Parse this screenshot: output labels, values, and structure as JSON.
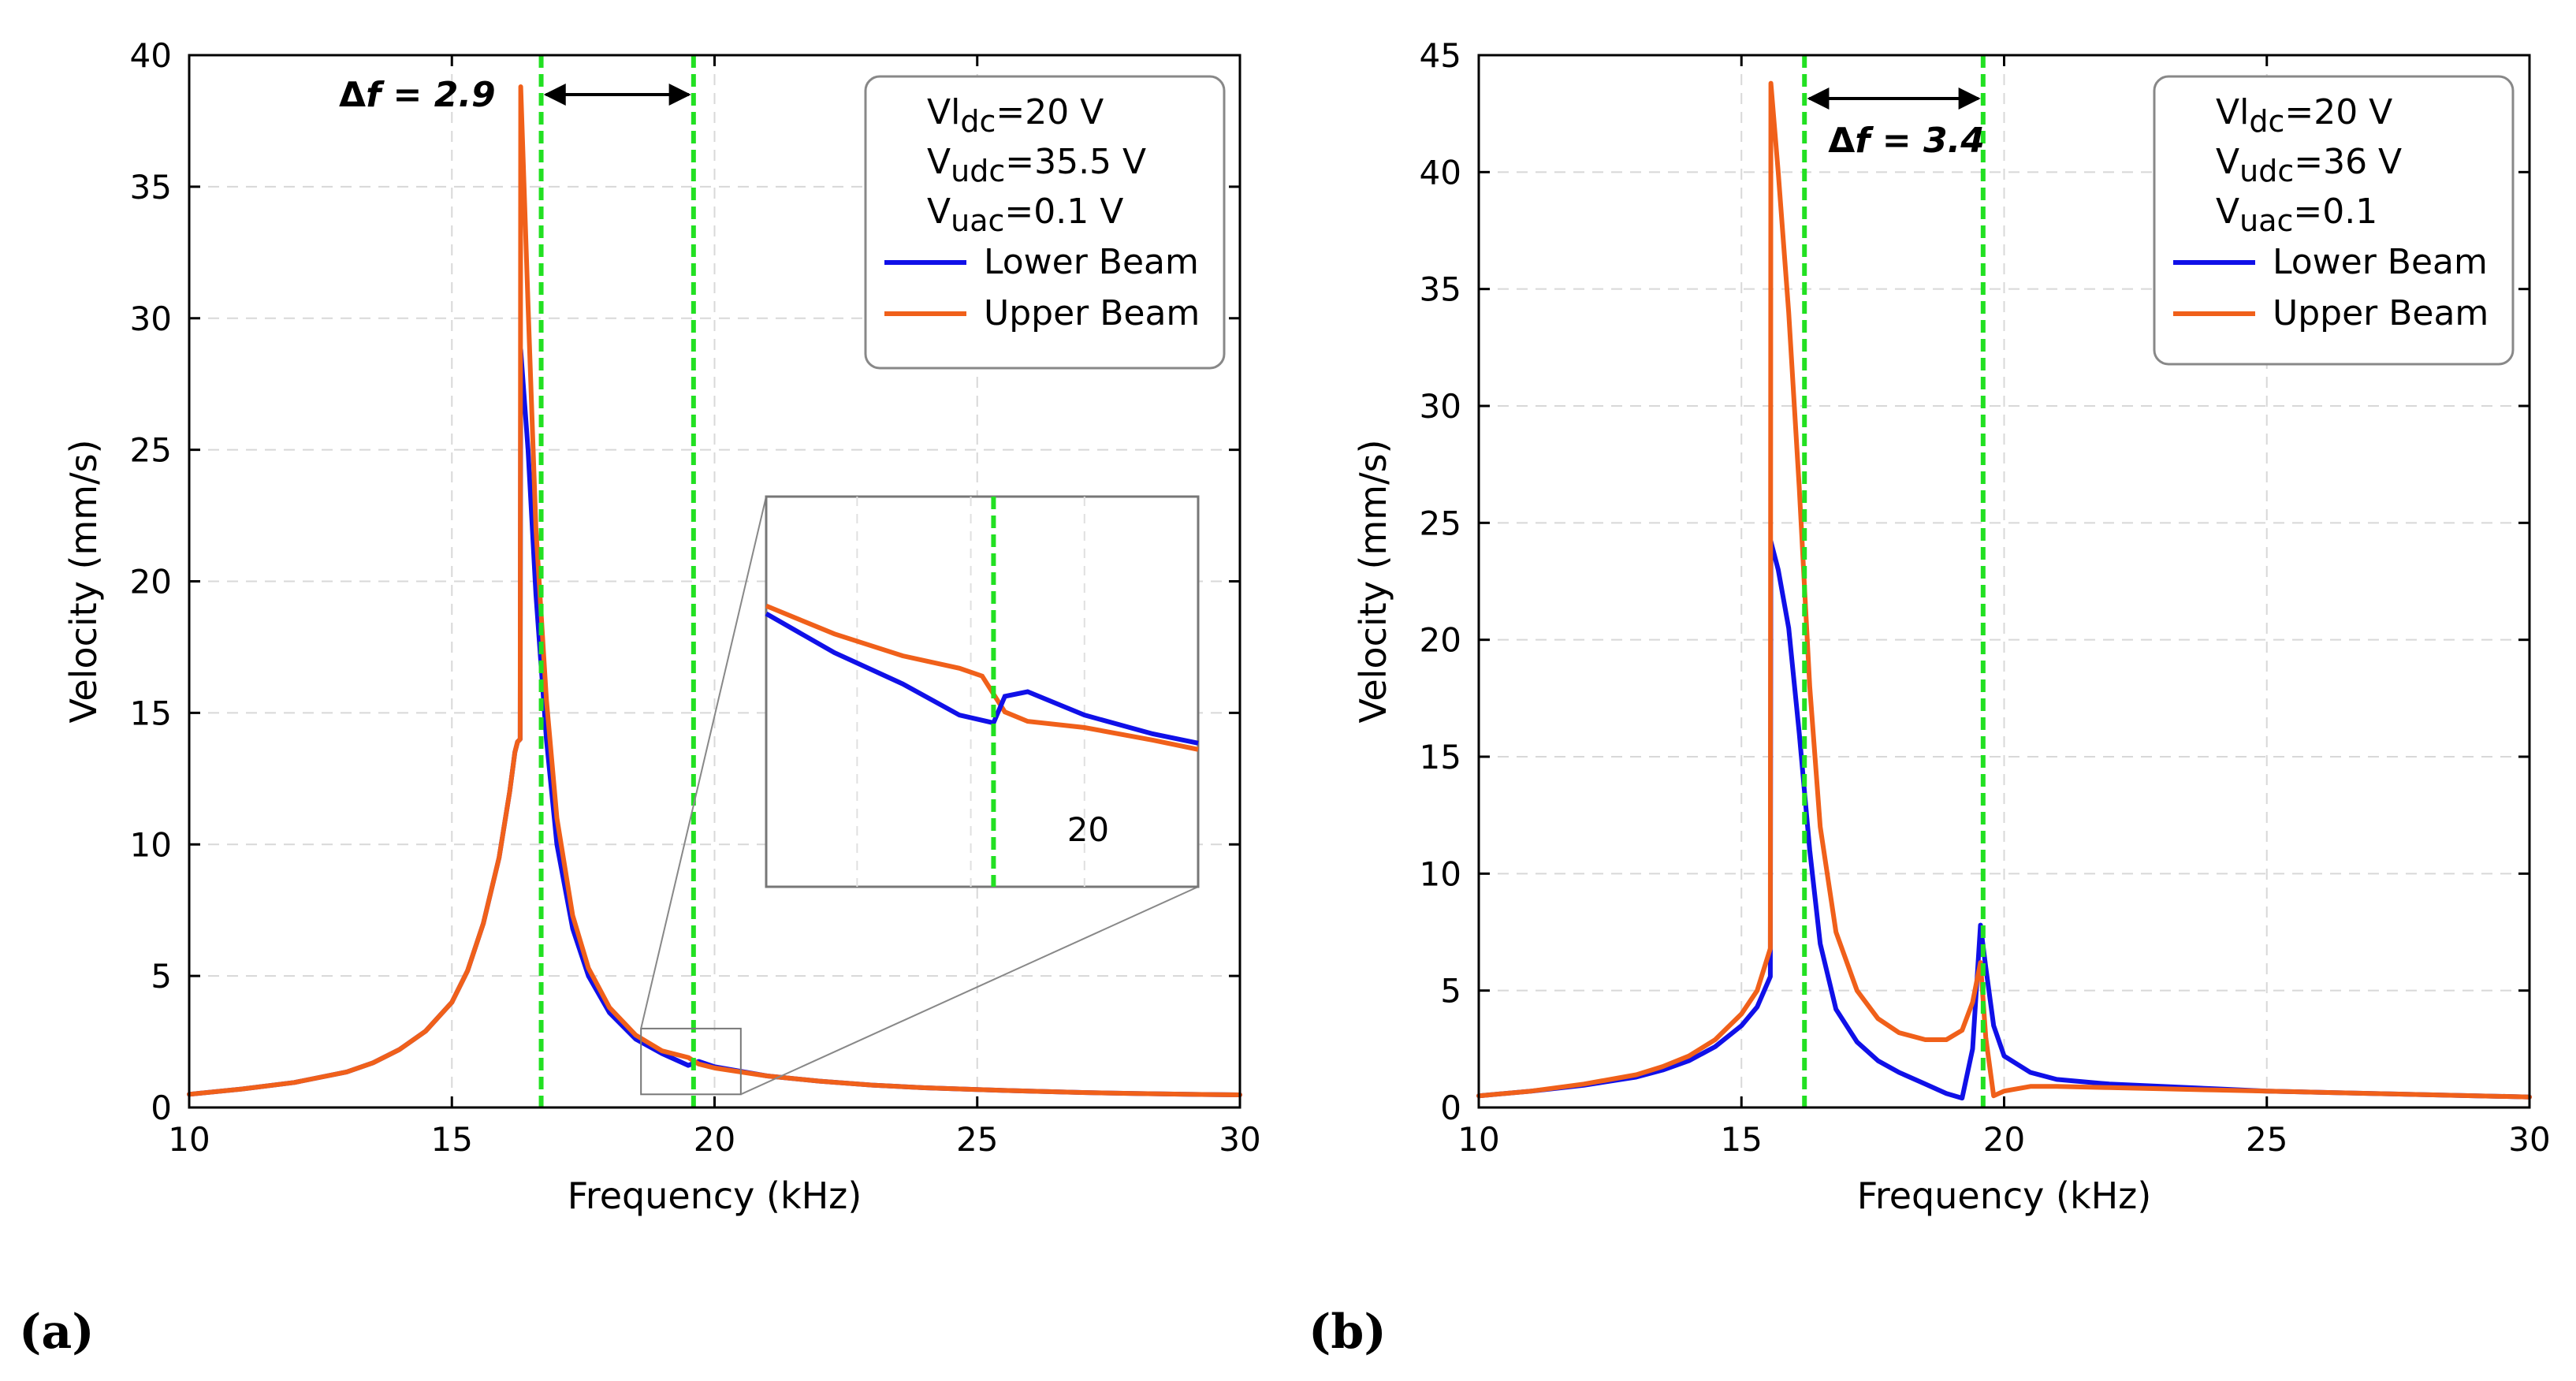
{
  "chart_data": [
    {
      "type": "line",
      "panel_label": "(a)",
      "xlabel": "Frequency (kHz)",
      "ylabel": "Velocity (mm/s)",
      "xlim": [
        10,
        30
      ],
      "ylim": [
        0,
        40
      ],
      "xticks": [
        10,
        15,
        20,
        25,
        30
      ],
      "yticks": [
        0,
        5,
        10,
        15,
        20,
        25,
        30,
        35,
        40
      ],
      "grid": true,
      "legend_position": "top-right",
      "annotation": {
        "prefix": "Δ",
        "var": "f",
        "rest": " = 2.9",
        "from": 16.7,
        "to": 19.6
      },
      "markers_x": [
        16.7,
        19.6
      ],
      "legend": {
        "lines": [
          {
            "base": "Vl",
            "sub": "dc",
            "rest": "=20 V"
          },
          {
            "base": "V",
            "sub": "udc",
            "rest": "=35.5 V"
          },
          {
            "base": "V",
            "sub": "uac",
            "rest": "=0.1 V"
          }
        ],
        "entries": [
          "Lower Beam",
          "Upper Beam"
        ]
      },
      "inset": {
        "label": "20",
        "xlim": [
          18.6,
          20.5
        ],
        "ylim": [
          0.5,
          3.0
        ]
      },
      "series": [
        {
          "name": "Lower Beam",
          "color": "#1010e8",
          "x": [
            10,
            11,
            12,
            13,
            13.5,
            14,
            14.5,
            15,
            15.3,
            15.6,
            15.9,
            16.1,
            16.2,
            16.25,
            16.3,
            16.31,
            16.45,
            16.6,
            16.8,
            17.0,
            17.3,
            17.6,
            18.0,
            18.5,
            19.0,
            19.5,
            19.7,
            20.0,
            21.0,
            22.0,
            23.0,
            24.0,
            25.0,
            26.0,
            27.0,
            28.0,
            29.0,
            30.0
          ],
          "y": [
            0.5,
            0.7,
            0.95,
            1.35,
            1.7,
            2.2,
            2.9,
            4.0,
            5.2,
            7.0,
            9.5,
            12.0,
            13.5,
            13.9,
            14.0,
            28.8,
            25.0,
            19.5,
            14.0,
            10.0,
            6.8,
            5.0,
            3.6,
            2.6,
            2.05,
            1.6,
            1.75,
            1.55,
            1.2,
            1.0,
            0.85,
            0.75,
            0.68,
            0.62,
            0.57,
            0.53,
            0.5,
            0.48
          ]
        },
        {
          "name": "Upper Beam",
          "color": "#f0601a",
          "x": [
            10,
            11,
            12,
            13,
            13.5,
            14,
            14.5,
            15,
            15.3,
            15.6,
            15.9,
            16.1,
            16.2,
            16.25,
            16.3,
            16.31,
            16.45,
            16.6,
            16.8,
            17.0,
            17.3,
            17.6,
            18.0,
            18.5,
            19.0,
            19.5,
            19.7,
            20.0,
            21.0,
            22.0,
            23.0,
            24.0,
            25.0,
            26.0,
            27.0,
            28.0,
            29.0,
            30.0
          ],
          "y": [
            0.5,
            0.7,
            0.95,
            1.35,
            1.7,
            2.2,
            2.9,
            4.0,
            5.2,
            7.0,
            9.5,
            12.0,
            13.5,
            13.9,
            14.0,
            38.8,
            30.5,
            22.0,
            15.5,
            11.0,
            7.3,
            5.3,
            3.8,
            2.75,
            2.15,
            1.9,
            1.65,
            1.5,
            1.2,
            1.0,
            0.85,
            0.75,
            0.68,
            0.62,
            0.57,
            0.53,
            0.5,
            0.48
          ]
        }
      ]
    },
    {
      "type": "line",
      "panel_label": "(b)",
      "xlabel": "Frequency (kHz)",
      "ylabel": "Velocity (mm/s)",
      "xlim": [
        10,
        30
      ],
      "ylim": [
        0,
        45
      ],
      "xticks": [
        10,
        15,
        20,
        25,
        30
      ],
      "yticks": [
        0,
        5,
        10,
        15,
        20,
        25,
        30,
        35,
        40,
        45
      ],
      "grid": true,
      "legend_position": "top-right",
      "annotation": {
        "prefix": "Δ",
        "var": "f",
        "rest": " = 3.4",
        "from": 16.2,
        "to": 19.6
      },
      "markers_x": [
        16.2,
        19.6
      ],
      "legend": {
        "lines": [
          {
            "base": "Vl",
            "sub": "dc",
            "rest": "=20 V"
          },
          {
            "base": "V",
            "sub": "udc",
            "rest": "=36 V"
          },
          {
            "base": "V",
            "sub": "uac",
            "rest": "=0.1"
          }
        ],
        "entries": [
          "Lower Beam",
          "Upper Beam"
        ]
      },
      "series": [
        {
          "name": "Lower Beam",
          "color": "#1010e8",
          "x": [
            10,
            11,
            12,
            13,
            13.5,
            14,
            14.5,
            15,
            15.3,
            15.55,
            15.56,
            15.7,
            15.9,
            16.1,
            16.3,
            16.5,
            16.8,
            17.2,
            17.6,
            18.0,
            18.5,
            18.9,
            19.2,
            19.4,
            19.55,
            19.65,
            19.8,
            20.0,
            20.5,
            21,
            22,
            23,
            24,
            25,
            26,
            27,
            28,
            29,
            30
          ],
          "y": [
            0.5,
            0.7,
            0.95,
            1.3,
            1.6,
            2.0,
            2.6,
            3.5,
            4.3,
            5.6,
            24.2,
            23.0,
            20.5,
            16.0,
            11.0,
            7.0,
            4.2,
            2.8,
            2.0,
            1.5,
            1.0,
            0.6,
            0.4,
            2.5,
            7.8,
            6.0,
            3.5,
            2.2,
            1.5,
            1.2,
            1.0,
            0.9,
            0.8,
            0.7,
            0.65,
            0.6,
            0.55,
            0.5,
            0.45
          ]
        },
        {
          "name": "Upper Beam",
          "color": "#f0601a",
          "x": [
            10,
            11,
            12,
            13,
            13.5,
            14,
            14.5,
            15,
            15.3,
            15.55,
            15.56,
            15.7,
            15.9,
            16.1,
            16.3,
            16.5,
            16.8,
            17.2,
            17.6,
            18.0,
            18.5,
            18.9,
            19.2,
            19.4,
            19.55,
            19.65,
            19.8,
            20.0,
            20.5,
            21,
            22,
            23,
            24,
            25,
            26,
            27,
            28,
            29,
            30
          ],
          "y": [
            0.5,
            0.7,
            1.0,
            1.4,
            1.75,
            2.2,
            2.9,
            4.0,
            5.0,
            6.8,
            43.8,
            40.0,
            34.0,
            26.5,
            18.0,
            12.0,
            7.5,
            5.0,
            3.8,
            3.2,
            2.9,
            2.9,
            3.3,
            4.5,
            6.2,
            3.0,
            0.5,
            0.7,
            0.9,
            0.9,
            0.85,
            0.8,
            0.75,
            0.7,
            0.65,
            0.6,
            0.55,
            0.5,
            0.45
          ]
        }
      ]
    }
  ]
}
